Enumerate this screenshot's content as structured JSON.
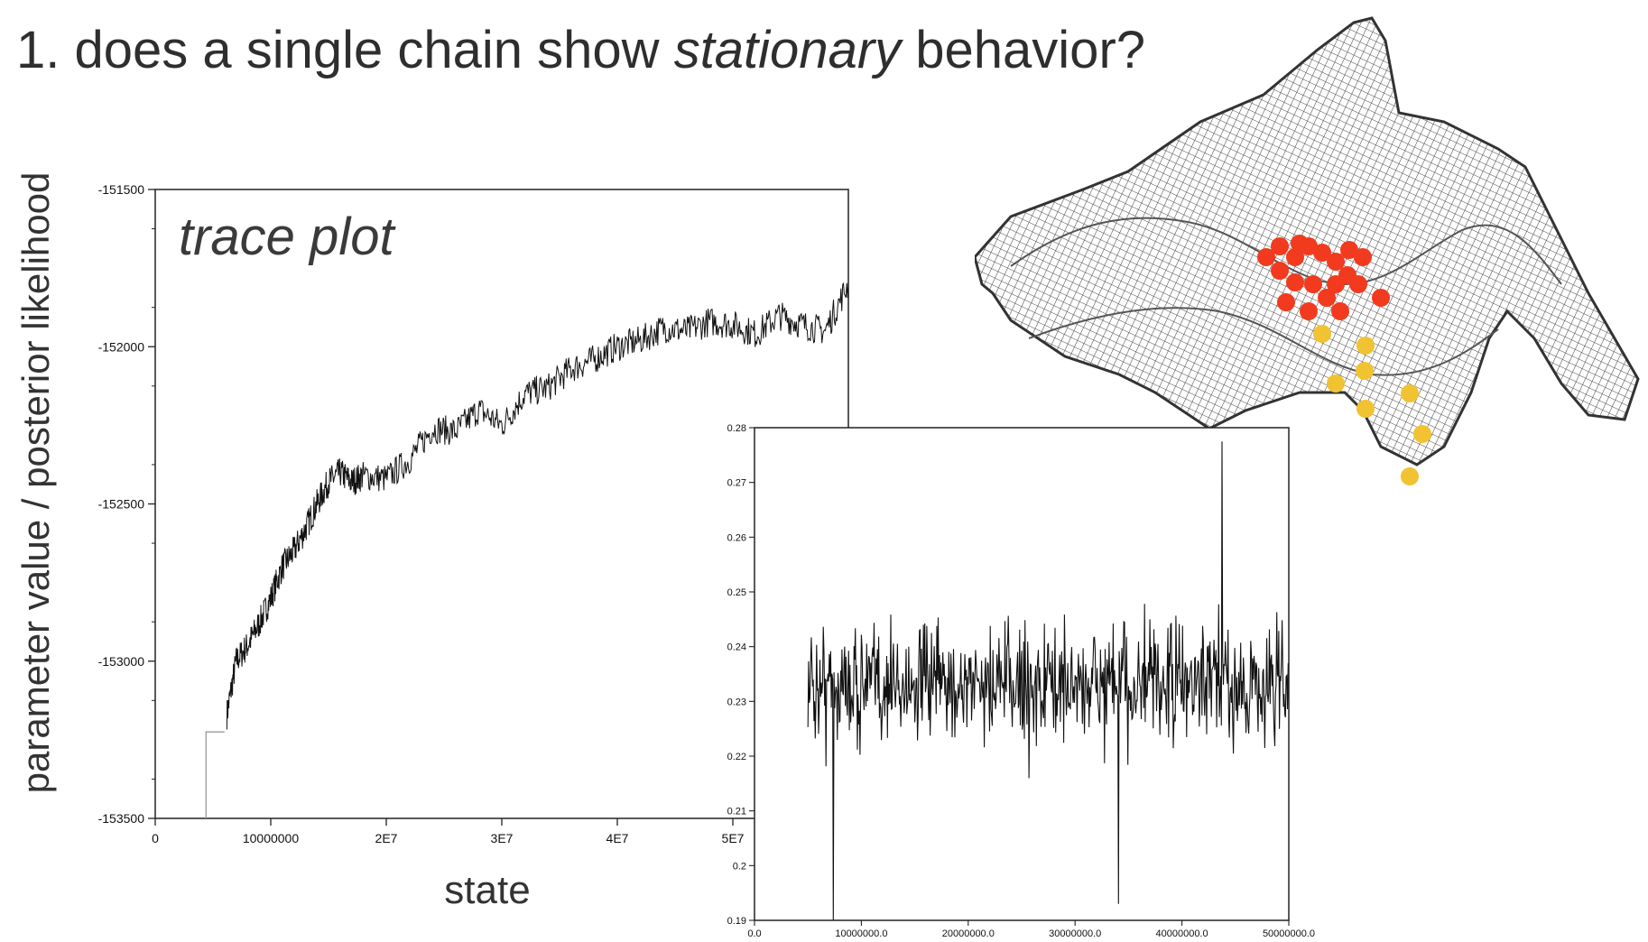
{
  "slide": {
    "title_prefix": "1. does a single chain show ",
    "title_emphasis": "stationary",
    "title_suffix": " behavior?"
  },
  "chart_data": [
    {
      "type": "line",
      "annotation": "trace plot",
      "xlabel": "state",
      "ylabel": "parameter value / posterior likelihood",
      "xlim": [
        0,
        60000000
      ],
      "ylim": [
        -153500,
        -151500
      ],
      "xticks": [
        0,
        10000000,
        20000000,
        30000000,
        40000000,
        50000000
      ],
      "xtick_labels": [
        "0",
        "10000000",
        "2E7",
        "3E7",
        "4E7",
        "5E7"
      ],
      "yticks": [
        -151500,
        -152000,
        -152500,
        -153000,
        -153500
      ],
      "ytick_labels": [
        "-151500",
        "-152000",
        "-152500",
        "-153000",
        "-153500"
      ],
      "burnin_segment": {
        "x": [
          4400000,
          4400000,
          6000000
        ],
        "y": [
          -153500,
          -153225,
          -153225
        ]
      },
      "series": [
        {
          "x": [
            6200000,
            7000000,
            8000000,
            9000000,
            10000000,
            11000000,
            12000000,
            13000000,
            14000000,
            15000000,
            16000000,
            17000000,
            18000000,
            20000000,
            22000000,
            24000000,
            26000000,
            28000000,
            30000000,
            32000000,
            34000000,
            36000000,
            38000000,
            40000000,
            42000000,
            44000000,
            46000000,
            48000000,
            50000000,
            52000000,
            54000000,
            56000000,
            58000000,
            60000000
          ],
          "y": [
            -153170,
            -153000,
            -152950,
            -152880,
            -152800,
            -152700,
            -152650,
            -152580,
            -152500,
            -152430,
            -152400,
            -152430,
            -152410,
            -152420,
            -152360,
            -152260,
            -152270,
            -152200,
            -152250,
            -152150,
            -152130,
            -152070,
            -152040,
            -152000,
            -151980,
            -151940,
            -151950,
            -151920,
            -151930,
            -151960,
            -151900,
            -151930,
            -151950,
            -151800
          ]
        }
      ]
    },
    {
      "type": "line",
      "xlim": [
        0,
        50000000
      ],
      "ylim": [
        0.19,
        0.28
      ],
      "xticks": [
        0,
        10000000,
        20000000,
        30000000,
        40000000,
        50000000
      ],
      "xtick_labels": [
        "0.0",
        "10000000.0",
        "20000000.0",
        "30000000.0",
        "40000000.0",
        "50000000.0"
      ],
      "yticks": [
        0.19,
        0.2,
        0.21,
        0.22,
        0.23,
        0.24,
        0.25,
        0.26,
        0.27,
        0.28
      ],
      "ytick_labels": [
        "0.19",
        "0.2",
        "0.21",
        "0.22",
        "0.23",
        "0.24",
        "0.25",
        "0.26",
        "0.27",
        "0.28"
      ],
      "series": [
        {
          "x_start": 5000000,
          "x_end": 50000000,
          "mean": 0.233,
          "spread": 0.009,
          "min": 0.19,
          "max": 0.278
        }
      ]
    }
  ],
  "surface_figure": {
    "red_points": 20,
    "yellow_points": 8,
    "colors": {
      "red": "#f23a1e",
      "yellow": "#f1c232",
      "mesh": "#444444"
    }
  }
}
